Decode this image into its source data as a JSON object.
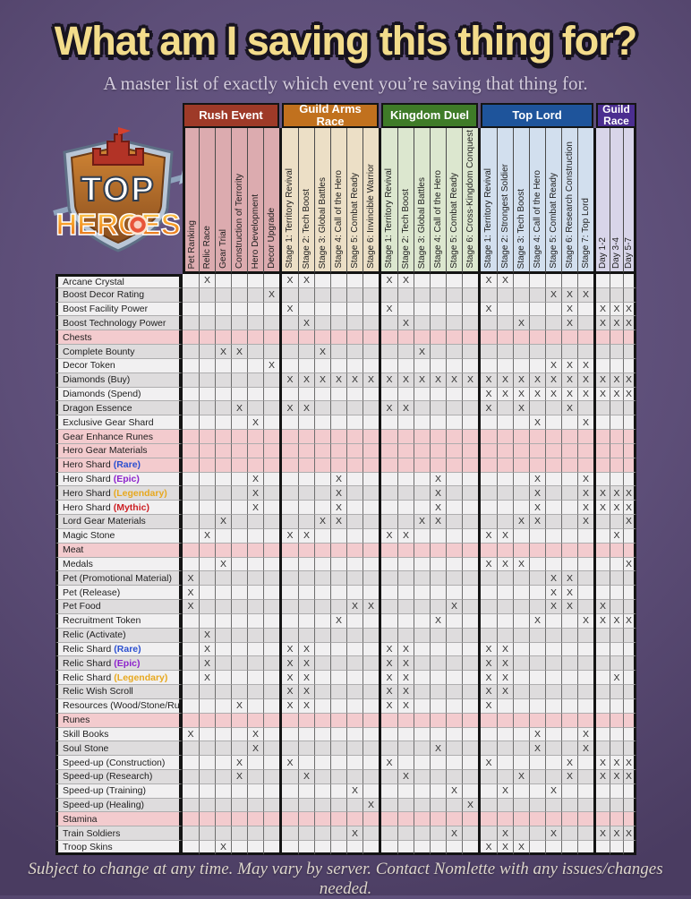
{
  "header": {
    "title": "What am I saving this thing for?",
    "subtitle": "A master list of exactly which event you’re saving that thing for.",
    "footer": "Subject to change at any time. May vary by server. Contact Nomlette with any issues/changes needed."
  },
  "logo": {
    "top_text": "TOP",
    "bottom_text": "HEROES"
  },
  "colors": {
    "background_purple": "#5d4e78",
    "title_yellow": "#f3dc8b",
    "highlight_row_pink": "#f3cbce",
    "stripe_light": "#f1f0f1",
    "stripe_dark": "#dedcdd",
    "rarity_rare": "#2b4fd0",
    "rarity_epic": "#8d22cc",
    "rarity_legendary": "#e7a81f",
    "rarity_mythic": "#cc1f24"
  },
  "chart_data": {
    "type": "table",
    "mark_symbol": "X",
    "groups": [
      {
        "name": "Rush Event",
        "color": "#9e3a28",
        "tint": "#dcabaf",
        "columns": [
          "Pet Ranking",
          "Relic Race",
          "Gear Trial",
          "Construction of Terrority",
          "Hero Development",
          "Decor Upgrade"
        ]
      },
      {
        "name": "Guild Arms Race",
        "color": "#c1711e",
        "tint": "#ecdfc6",
        "columns": [
          "Stage 1: Territory Revival",
          "Stage 2: Tech Boost",
          "Stage 3: Global Battles",
          "Stage 4: Call of the Hero",
          "Stage 5: Combat Ready",
          "Stage 6: Invincible Warrior"
        ]
      },
      {
        "name": "Kingdom Duel",
        "color": "#3f7b28",
        "tint": "#dce7cf",
        "columns": [
          "Stage 1: Territory Revival",
          "Stage 2: Tech Boost",
          "Stage 3: Global Battles",
          "Stage 4: Call of the Hero",
          "Stage 5: Combat Ready",
          "Stage 6: Cross-Kingdom Conquest"
        ]
      },
      {
        "name": "Top Lord",
        "color": "#1e549b",
        "tint": "#d2dfee",
        "columns": [
          "Stage 1: Territory Revival",
          "Stage 2: Strongest Soldier",
          "Stage 3: Tech Boost",
          "Stage 4: Call of the Hero",
          "Stage 5: Combat Ready",
          "Stage 6: Research Construction",
          "Stage 7: Top Lord"
        ]
      },
      {
        "name": "Guild Race",
        "color": "#4b2e90",
        "tint": "#d8d5e9",
        "columns": [
          "Day 1-2",
          "Day 3-4",
          "Day 5-7"
        ]
      }
    ],
    "rows": [
      {
        "label": "Arcane Crystal",
        "marks": [
          2,
          7,
          8,
          13,
          14,
          19,
          20
        ]
      },
      {
        "label": "Boost Decor Rating",
        "marks": [
          6,
          23,
          24,
          25
        ]
      },
      {
        "label": "Boost Facility Power",
        "marks": [
          7,
          13,
          19,
          24,
          26,
          27,
          28
        ]
      },
      {
        "label": "Boost Technology Power",
        "marks": [
          8,
          14,
          21,
          24,
          26,
          27,
          28
        ]
      },
      {
        "label": "Chests",
        "highlight": true,
        "marks": []
      },
      {
        "label": "Complete Bounty",
        "marks": [
          3,
          4,
          9,
          15
        ]
      },
      {
        "label": "Decor Token",
        "marks": [
          6,
          23,
          24,
          25
        ]
      },
      {
        "label": "Diamonds (Buy)",
        "marks": [
          7,
          8,
          9,
          10,
          11,
          12,
          13,
          14,
          15,
          16,
          17,
          18,
          19,
          20,
          21,
          22,
          23,
          24,
          25,
          26,
          27,
          28
        ]
      },
      {
        "label": "Diamonds (Spend)",
        "marks": [
          19,
          20,
          21,
          22,
          23,
          24,
          25,
          26,
          27,
          28
        ]
      },
      {
        "label": "Dragon Essence",
        "marks": [
          4,
          7,
          8,
          13,
          14,
          19,
          21,
          24
        ]
      },
      {
        "label": "Exclusive Gear Shard",
        "marks": [
          5,
          22,
          25
        ]
      },
      {
        "label": "Gear Enhance Runes",
        "highlight": true,
        "marks": []
      },
      {
        "label": "Hero Gear Materials",
        "highlight": true,
        "marks": []
      },
      {
        "label": "Hero Shard",
        "suffix": "(Rare)",
        "suffix_color": "#2b4fd0",
        "highlight": true,
        "marks": []
      },
      {
        "label": "Hero Shard",
        "suffix": "(Epic)",
        "suffix_color": "#8d22cc",
        "marks": [
          5,
          10,
          16,
          22,
          25
        ]
      },
      {
        "label": "Hero Shard",
        "suffix": "(Legendary)",
        "suffix_color": "#e7a81f",
        "marks": [
          5,
          10,
          16,
          22,
          25,
          26,
          27,
          28
        ]
      },
      {
        "label": "Hero Shard",
        "suffix": "(Mythic)",
        "suffix_color": "#cc1f24",
        "marks": [
          5,
          10,
          16,
          22,
          25,
          26,
          27,
          28
        ]
      },
      {
        "label": "Lord Gear Materials",
        "marks": [
          3,
          9,
          10,
          15,
          16,
          21,
          22,
          25,
          28
        ]
      },
      {
        "label": "Magic Stone",
        "marks": [
          2,
          7,
          8,
          13,
          14,
          19,
          20,
          27
        ]
      },
      {
        "label": "Meat",
        "highlight": true,
        "marks": []
      },
      {
        "label": "Medals",
        "marks": [
          3,
          19,
          20,
          21,
          28
        ]
      },
      {
        "label": "Pet (Promotional Material)",
        "marks": [
          1,
          23,
          24
        ]
      },
      {
        "label": "Pet (Release)",
        "marks": [
          1,
          23,
          24
        ]
      },
      {
        "label": "Pet Food",
        "marks": [
          1,
          11,
          12,
          17,
          23,
          24,
          26
        ]
      },
      {
        "label": "Recruitment Token",
        "marks": [
          10,
          16,
          22,
          25,
          26,
          27,
          28
        ]
      },
      {
        "label": "Relic (Activate)",
        "marks": [
          2
        ]
      },
      {
        "label": "Relic Shard",
        "suffix": "(Rare)",
        "suffix_color": "#2b4fd0",
        "marks": [
          2,
          7,
          8,
          13,
          14,
          19,
          20
        ]
      },
      {
        "label": "Relic Shard",
        "suffix": "(Epic)",
        "suffix_color": "#8d22cc",
        "marks": [
          2,
          7,
          8,
          13,
          14,
          19,
          20
        ]
      },
      {
        "label": "Relic Shard",
        "suffix": "(Legendary)",
        "suffix_color": "#e7a81f",
        "marks": [
          2,
          7,
          8,
          13,
          14,
          19,
          20,
          27
        ]
      },
      {
        "label": "Relic Wish Scroll",
        "marks": [
          7,
          8,
          13,
          14,
          19,
          20
        ]
      },
      {
        "label": "Resources (Wood/Stone/Ruby)",
        "marks": [
          4,
          7,
          8,
          13,
          14,
          19
        ]
      },
      {
        "label": "Runes",
        "highlight": true,
        "marks": []
      },
      {
        "label": "Skill Books",
        "marks": [
          1,
          5,
          22,
          25
        ]
      },
      {
        "label": "Soul Stone",
        "marks": [
          5,
          16,
          22,
          25
        ]
      },
      {
        "label": "Speed-up (Construction)",
        "marks": [
          4,
          7,
          13,
          19,
          24,
          26,
          27,
          28
        ]
      },
      {
        "label": "Speed-up (Research)",
        "marks": [
          4,
          8,
          14,
          21,
          24,
          26,
          27,
          28
        ]
      },
      {
        "label": "Speed-up (Training)",
        "marks": [
          11,
          17,
          20,
          23
        ]
      },
      {
        "label": "Speed-up (Healing)",
        "marks": [
          12,
          18
        ]
      },
      {
        "label": "Stamina",
        "highlight": true,
        "marks": []
      },
      {
        "label": "Train Soldiers",
        "marks": [
          11,
          17,
          20,
          23,
          26,
          27,
          28
        ]
      },
      {
        "label": "Troop Skins",
        "marks": [
          3,
          19,
          20,
          21
        ]
      }
    ]
  }
}
